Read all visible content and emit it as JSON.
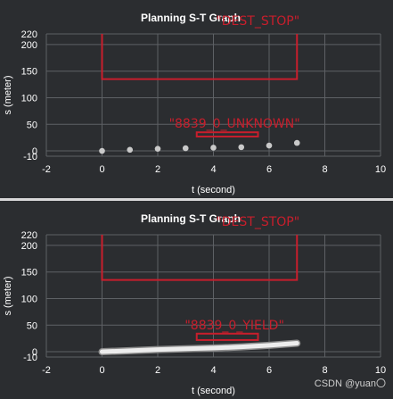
{
  "watermark": "CSDN @yuan〇",
  "colors": {
    "background": "#2b2d30",
    "grid": "#5e6165",
    "text": "#ffffff",
    "obstacle": "#c81e2c",
    "point": "#c9c9c9",
    "trajectory": "#ededed"
  },
  "chart_data": [
    {
      "type": "scatter",
      "title": "Planning S-T Graph",
      "xlabel": "t (second)",
      "ylabel": "s (meter)",
      "xlim": [
        -2,
        10
      ],
      "ylim": [
        -10,
        220
      ],
      "xticks": [
        "-2",
        "0",
        "2",
        "4",
        "6",
        "8",
        "10"
      ],
      "yticks": [
        "-10",
        "0",
        "50",
        "100",
        "150",
        "200",
        "220"
      ],
      "grid": true,
      "series": [
        {
          "style": "points",
          "x": [
            0,
            1,
            2,
            3,
            4,
            5,
            6,
            7
          ],
          "y": [
            0,
            2,
            4,
            5,
            6,
            7,
            10,
            15
          ]
        }
      ],
      "regions": [
        {
          "label": "\"DEST_STOP\"",
          "x": [
            0,
            7
          ],
          "y": [
            135,
            220
          ],
          "open_top": true
        },
        {
          "label": "\"8839_0_UNKNOWN\"",
          "x": [
            3.4,
            5.6
          ],
          "y": [
            27,
            35
          ],
          "open_top": false
        }
      ]
    },
    {
      "type": "line",
      "title": "Planning S-T Graph",
      "xlabel": "t (second)",
      "ylabel": "s (meter)",
      "xlim": [
        -2,
        10
      ],
      "ylim": [
        -10,
        220
      ],
      "xticks": [
        "-2",
        "0",
        "2",
        "4",
        "6",
        "8",
        "10"
      ],
      "yticks": [
        "-10",
        "0",
        "50",
        "100",
        "150",
        "200",
        "220"
      ],
      "grid": true,
      "series": [
        {
          "style": "thick-line",
          "x": [
            0,
            1,
            2,
            3,
            4,
            5,
            6,
            7
          ],
          "y": [
            0,
            2,
            4,
            5.5,
            7,
            9,
            12,
            16
          ]
        }
      ],
      "regions": [
        {
          "label": "\"DEST_STOP\"",
          "x": [
            0,
            7
          ],
          "y": [
            135,
            220
          ],
          "open_top": true
        },
        {
          "label": "\"8839_0_YIELD\"",
          "x": [
            3.4,
            5.6
          ],
          "y": [
            22,
            34
          ],
          "open_top": false
        }
      ]
    }
  ]
}
